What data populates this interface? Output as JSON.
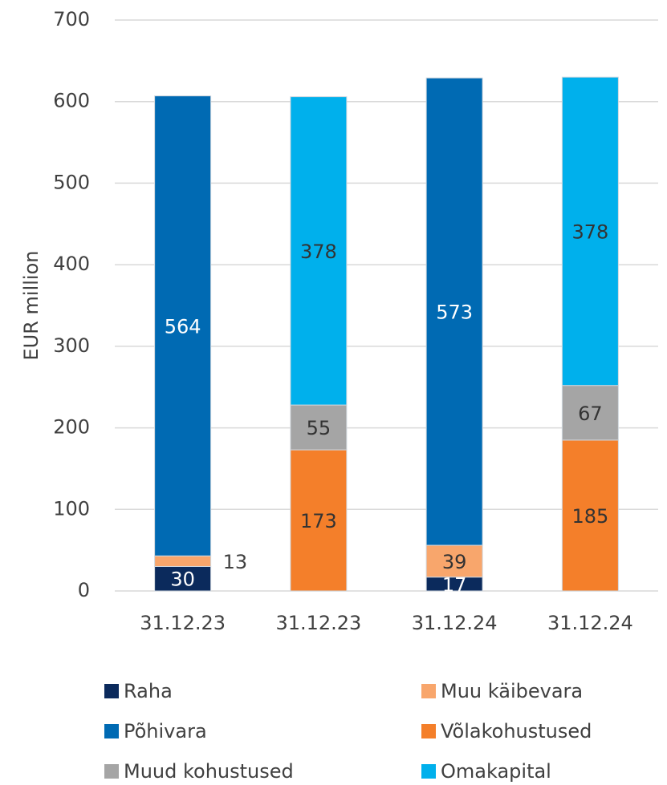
{
  "chart_data": {
    "type": "stacked_bar",
    "y_axis_label": "EUR million",
    "categories": [
      "31.12.23",
      "31.12.23",
      "31.12.24",
      "31.12.24"
    ],
    "series": [
      {
        "name": "Raha",
        "color": "#0b2a5c",
        "label_color": "#ffffff",
        "values": [
          30,
          null,
          17,
          null
        ]
      },
      {
        "name": "Muu käibevara",
        "color": "#f8a66c",
        "label_color": "#333333",
        "values": [
          13,
          null,
          39,
          null
        ]
      },
      {
        "name": "Põhivara",
        "color": "#006ab3",
        "label_color": "#ffffff",
        "values": [
          564,
          null,
          573,
          null
        ]
      },
      {
        "name": "Võlakohustused",
        "color": "#f47f2a",
        "label_color": "#333333",
        "values": [
          null,
          173,
          null,
          185
        ]
      },
      {
        "name": "Muud kohustused",
        "color": "#a5a5a5",
        "label_color": "#333333",
        "values": [
          null,
          55,
          null,
          67
        ]
      },
      {
        "name": "Omakapital",
        "color": "#00b0ec",
        "label_color": "#333333",
        "values": [
          null,
          378,
          null,
          378
        ]
      }
    ],
    "ylim": [
      0,
      700
    ],
    "yticks": [
      0,
      100,
      200,
      300,
      400,
      500,
      600,
      700
    ],
    "grid": true,
    "legend": "bottom"
  }
}
